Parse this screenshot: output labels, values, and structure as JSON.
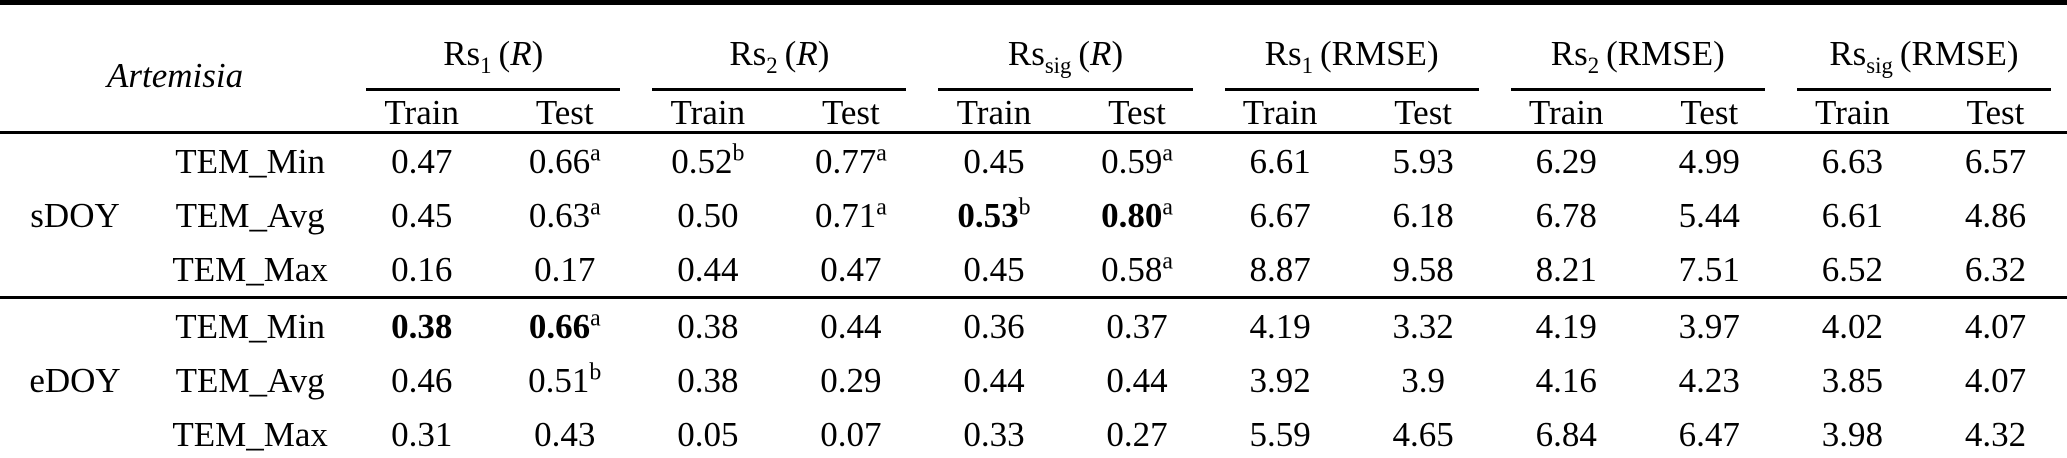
{
  "table": {
    "corner_label": "Artemisia",
    "groups": [
      {
        "base": "Rs",
        "sub": "1",
        "metric": "R",
        "metric_italic": true
      },
      {
        "base": "Rs",
        "sub": "2",
        "metric": "R",
        "metric_italic": true
      },
      {
        "base": "Rs",
        "sub": "sig",
        "metric": "R",
        "metric_italic": true
      },
      {
        "base": "Rs",
        "sub": "1",
        "metric": "RMSE",
        "metric_italic": false
      },
      {
        "base": "Rs",
        "sub": "2",
        "metric": "RMSE",
        "metric_italic": false
      },
      {
        "base": "Rs",
        "sub": "sig",
        "metric": "RMSE",
        "metric_italic": false
      }
    ],
    "subheaders": [
      "Train",
      "Test"
    ],
    "ink_color": "#000000",
    "sections": [
      {
        "label": "sDOY",
        "rows": [
          {
            "var": "TEM_Min",
            "cells": [
              {
                "v": "0.47"
              },
              {
                "v": "0.66",
                "sup": "a"
              },
              {
                "v": "0.52",
                "sup": "b"
              },
              {
                "v": "0.77",
                "sup": "a"
              },
              {
                "v": "0.45"
              },
              {
                "v": "0.59",
                "sup": "a"
              },
              {
                "v": "6.61"
              },
              {
                "v": "5.93"
              },
              {
                "v": "6.29"
              },
              {
                "v": "4.99"
              },
              {
                "v": "6.63"
              },
              {
                "v": "6.57"
              }
            ]
          },
          {
            "var": "TEM_Avg",
            "cells": [
              {
                "v": "0.45"
              },
              {
                "v": "0.63",
                "sup": "a"
              },
              {
                "v": "0.50"
              },
              {
                "v": "0.71",
                "sup": "a"
              },
              {
                "v": "0.53",
                "sup": "b",
                "bold": true
              },
              {
                "v": "0.80",
                "sup": "a",
                "bold": true
              },
              {
                "v": "6.67"
              },
              {
                "v": "6.18"
              },
              {
                "v": "6.78"
              },
              {
                "v": "5.44"
              },
              {
                "v": "6.61"
              },
              {
                "v": "4.86"
              }
            ]
          },
          {
            "var": "TEM_Max",
            "cells": [
              {
                "v": "0.16"
              },
              {
                "v": "0.17"
              },
              {
                "v": "0.44"
              },
              {
                "v": "0.47"
              },
              {
                "v": "0.45"
              },
              {
                "v": "0.58",
                "sup": "a"
              },
              {
                "v": "8.87"
              },
              {
                "v": "9.58"
              },
              {
                "v": "8.21"
              },
              {
                "v": "7.51"
              },
              {
                "v": "6.52"
              },
              {
                "v": "6.32"
              }
            ]
          }
        ]
      },
      {
        "label": "eDOY",
        "rows": [
          {
            "var": "TEM_Min",
            "cells": [
              {
                "v": "0.38",
                "bold": true
              },
              {
                "v": "0.66",
                "sup": "a",
                "bold": true
              },
              {
                "v": "0.38"
              },
              {
                "v": "0.44"
              },
              {
                "v": "0.36"
              },
              {
                "v": "0.37"
              },
              {
                "v": "4.19"
              },
              {
                "v": "3.32"
              },
              {
                "v": "4.19"
              },
              {
                "v": "3.97"
              },
              {
                "v": "4.02"
              },
              {
                "v": "4.07"
              }
            ]
          },
          {
            "var": "TEM_Avg",
            "cells": [
              {
                "v": "0.46"
              },
              {
                "v": "0.51",
                "sup": "b"
              },
              {
                "v": "0.38"
              },
              {
                "v": "0.29"
              },
              {
                "v": "0.44"
              },
              {
                "v": "0.44"
              },
              {
                "v": "3.92"
              },
              {
                "v": "3.9"
              },
              {
                "v": "4.16"
              },
              {
                "v": "4.23"
              },
              {
                "v": "3.85"
              },
              {
                "v": "4.07"
              }
            ]
          },
          {
            "var": "TEM_Max",
            "cells": [
              {
                "v": "0.31"
              },
              {
                "v": "0.43"
              },
              {
                "v": "0.05"
              },
              {
                "v": "0.07"
              },
              {
                "v": "0.33"
              },
              {
                "v": "0.27"
              },
              {
                "v": "5.59"
              },
              {
                "v": "4.65"
              },
              {
                "v": "6.84"
              },
              {
                "v": "6.47"
              },
              {
                "v": "3.98"
              },
              {
                "v": "4.32"
              }
            ]
          }
        ]
      }
    ]
  }
}
